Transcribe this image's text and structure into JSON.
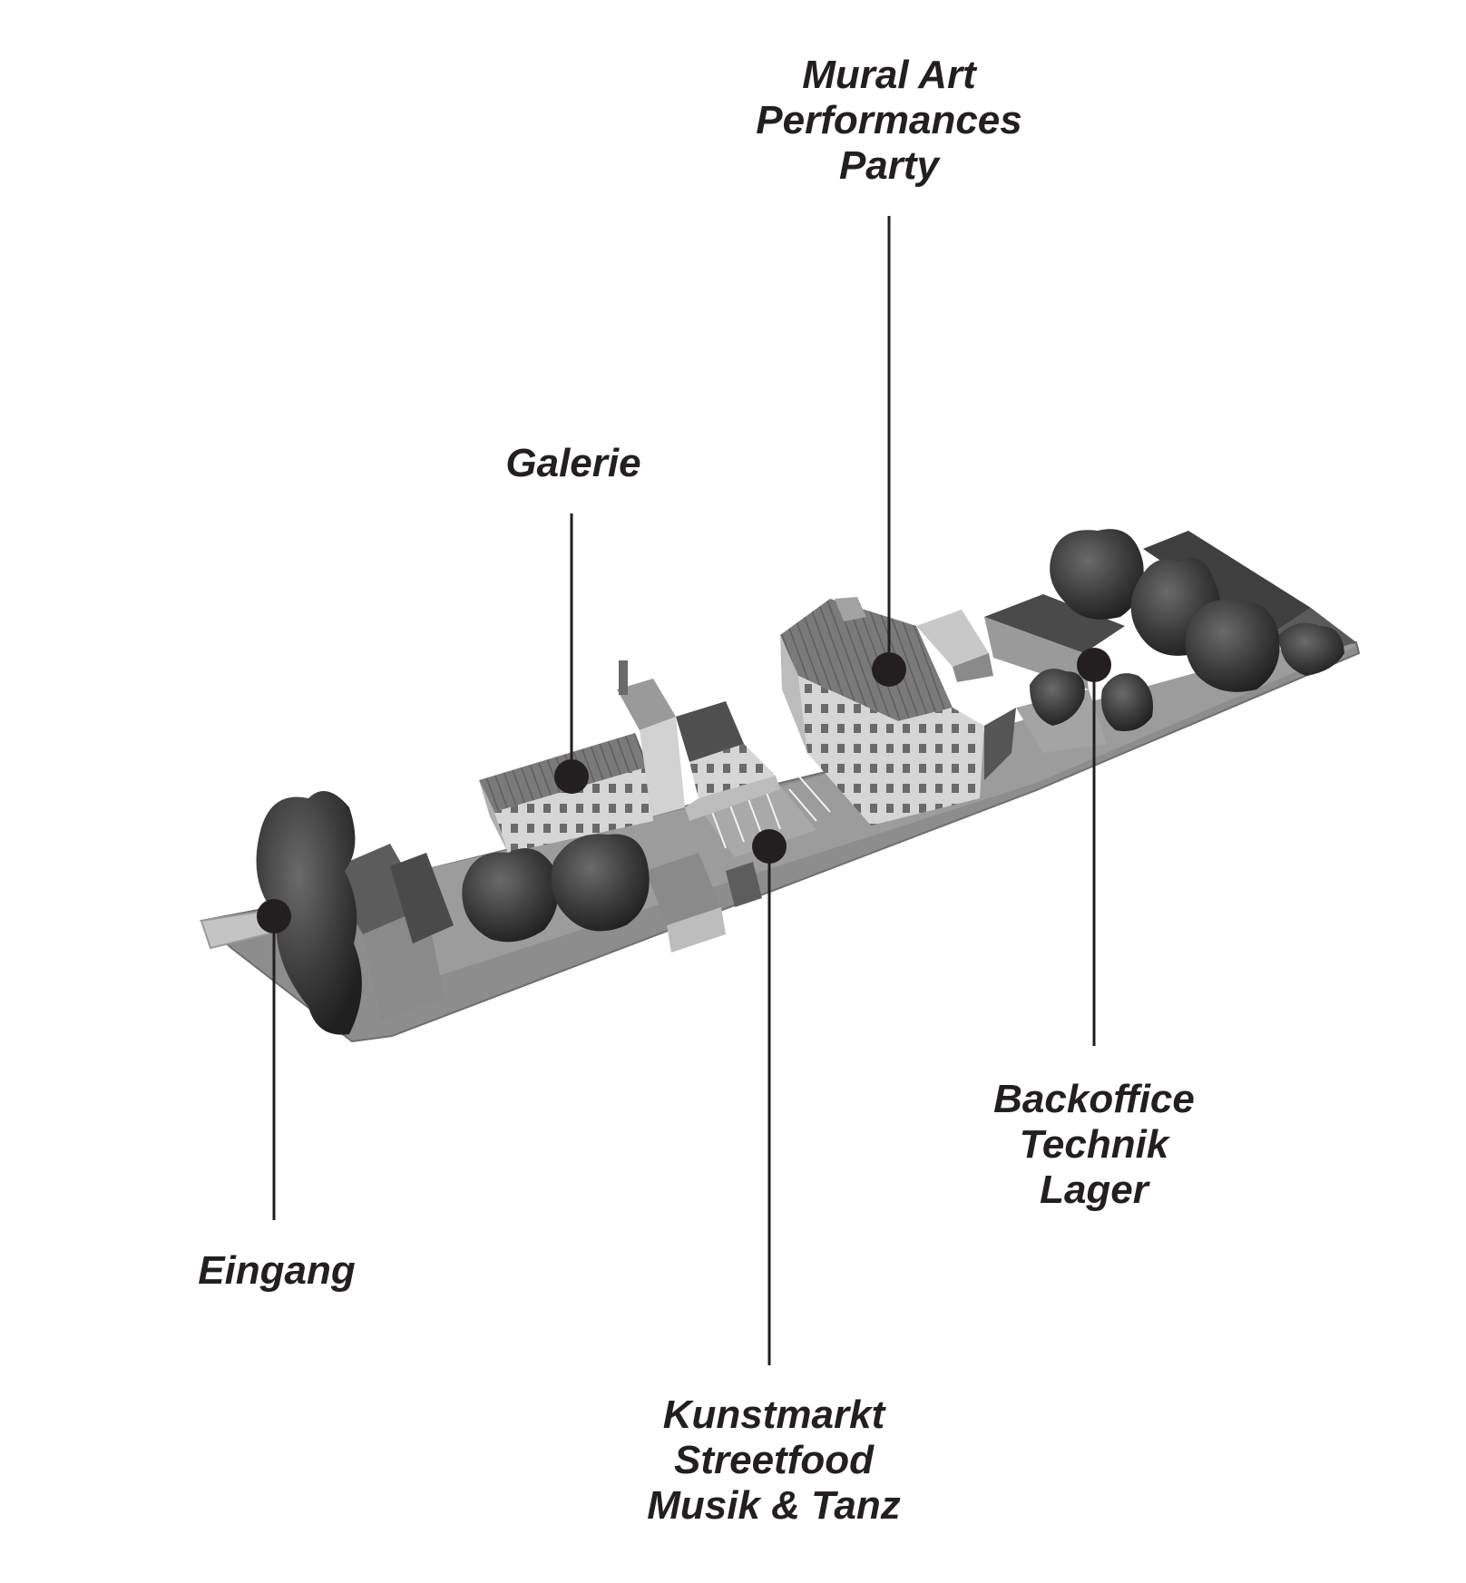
{
  "colors": {
    "ink": "#231f20",
    "ground": "#8f8f8f",
    "roof": "#6d6d6d",
    "wall": "#c9c9c9",
    "tree": "#3a3a3a"
  },
  "callouts": {
    "mural": {
      "lines": [
        "Mural Art",
        "Performances",
        "Party"
      ]
    },
    "galerie": {
      "lines": [
        "Galerie"
      ]
    },
    "eingang": {
      "lines": [
        "Eingang"
      ]
    },
    "kunstmarkt": {
      "lines": [
        "Kunstmarkt",
        "Streetfood",
        "Musik & Tanz"
      ]
    },
    "backoffice": {
      "lines": [
        "Backoffice",
        "Technik",
        "Lager"
      ]
    }
  }
}
